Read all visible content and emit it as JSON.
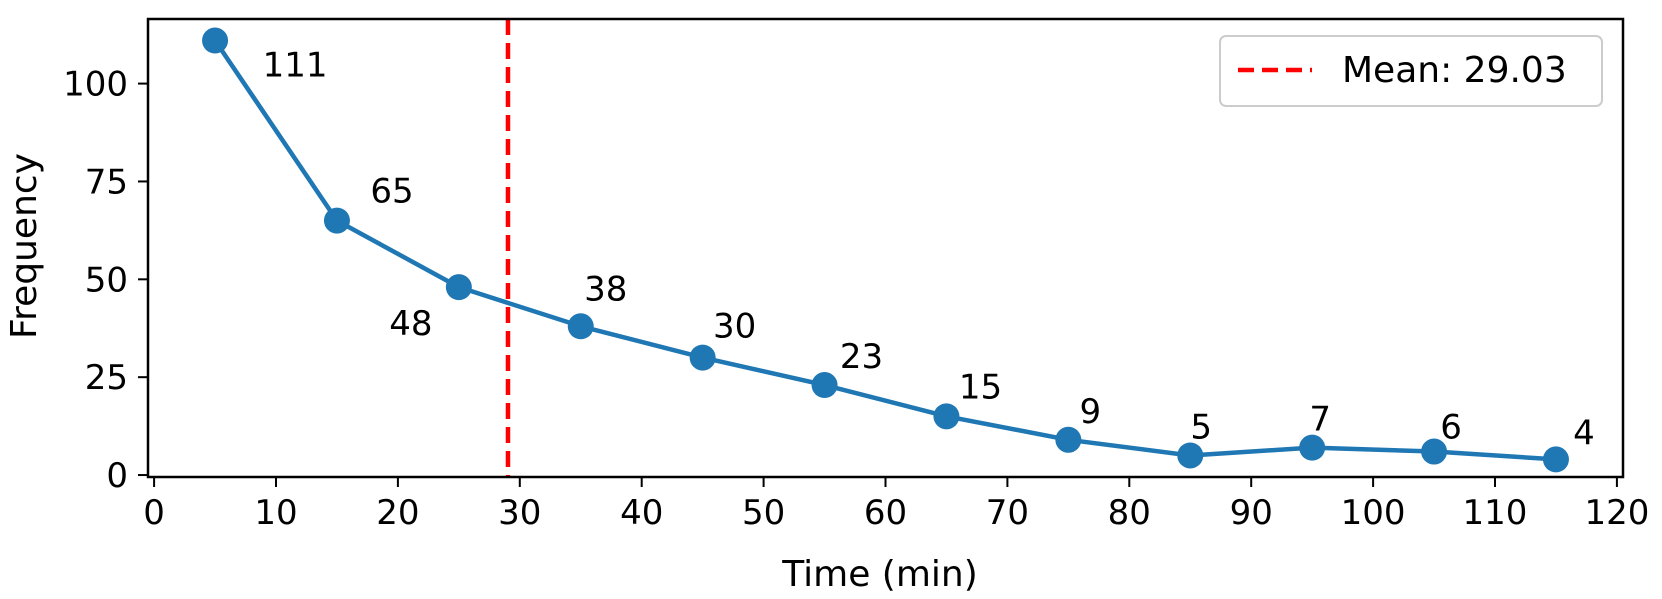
{
  "chart_data": {
    "type": "line",
    "x": [
      5,
      15,
      25,
      35,
      45,
      55,
      65,
      75,
      85,
      95,
      105,
      115
    ],
    "series": [
      {
        "values": [
          111,
          65,
          48,
          38,
          30,
          23,
          15,
          9,
          5,
          7,
          6,
          4
        ],
        "color": "#1f77b4"
      }
    ],
    "data_labels": [
      "111",
      "65",
      "48",
      "38",
      "30",
      "23",
      "15",
      "9",
      "5",
      "7",
      "6",
      "4"
    ],
    "xlabel": "Time (min)",
    "ylabel": "Frequency",
    "xlim": [
      -0.5,
      120.5
    ],
    "ylim": [
      -0.5,
      116.5
    ],
    "xticks": [
      0,
      10,
      20,
      30,
      40,
      50,
      60,
      70,
      80,
      90,
      100,
      110,
      120
    ],
    "yticks": [
      0,
      25,
      50,
      75,
      100
    ],
    "reference_line": {
      "orientation": "vertical",
      "x": 29.03,
      "style": "dashed",
      "color": "#ff0000",
      "label": "Mean: 29.03"
    },
    "legend": {
      "position": "top-right",
      "entries": [
        "Mean: 29.03"
      ]
    },
    "grid": false
  }
}
